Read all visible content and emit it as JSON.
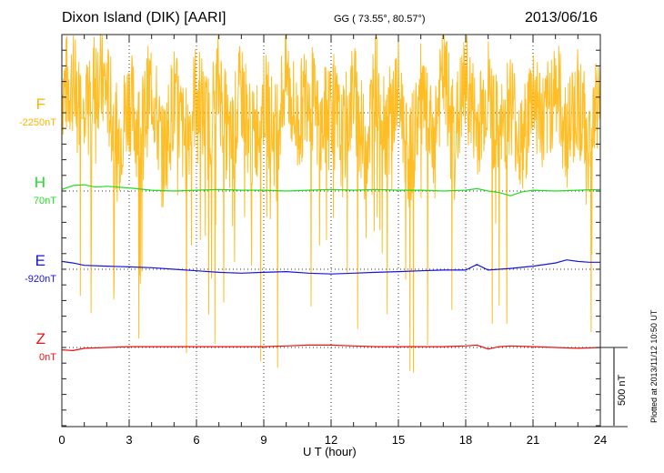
{
  "header": {
    "title": "Dixon Island (DIK)  [AARI]",
    "coords": "GG ( 73.55°,  80.57°)",
    "date": "2013/06/16"
  },
  "footer": {
    "plotted": "Plotted at 2013/11/12 10:50 UT"
  },
  "chart_data": {
    "type": "line",
    "title": "Dixon Island (DIK)  [AARI]",
    "xlabel": "U T (hour)",
    "xlim": [
      0,
      24
    ],
    "x_ticks": [
      "0",
      "3",
      "6",
      "9",
      "12",
      "15",
      "18",
      "21",
      "24"
    ],
    "grid": "dotted vertical lines every 3 hours, dotted horizontal baseline per component",
    "scale_bar": {
      "label": "500 nT",
      "value_nT": 500
    },
    "series": [
      {
        "name": "F",
        "baseline_label": "-2250nT",
        "baseline_nT": -2250,
        "color": "#FFB300",
        "description": "highly noisy / spiky trace",
        "x": [
          0,
          0.5,
          1,
          1.5,
          2,
          2.5,
          3,
          3.5,
          4,
          4.5,
          5,
          5.5,
          6,
          6.5,
          7,
          7.5,
          8,
          8.5,
          9,
          9.5,
          10,
          10.5,
          11,
          11.5,
          12,
          12.5,
          13,
          13.5,
          14,
          14.5,
          15,
          15.5,
          16,
          16.5,
          17,
          17.5,
          18,
          18.5,
          19,
          19.5,
          20,
          20.5,
          21,
          21.5,
          22,
          22.5,
          23,
          23.5,
          24
        ],
        "y_offset_nT": [
          150,
          200,
          -100,
          250,
          150,
          -200,
          100,
          -150,
          200,
          -300,
          100,
          -200,
          150,
          -100,
          200,
          -250,
          150,
          -200,
          100,
          -150,
          250,
          -100,
          200,
          -150,
          100,
          -200,
          150,
          -250,
          200,
          -100,
          150,
          -300,
          100,
          -200,
          250,
          -150,
          200,
          -100,
          150,
          -200,
          100,
          -250,
          150,
          -100,
          200,
          -150,
          100,
          -200,
          150
        ]
      },
      {
        "name": "H",
        "baseline_label": "70nT",
        "baseline_nT": 70,
        "color": "#22DD22",
        "x": [
          0,
          0.5,
          1,
          1.5,
          2,
          3,
          4,
          5,
          6,
          7,
          8,
          9,
          10,
          11,
          12,
          13,
          14,
          15,
          16,
          17,
          18,
          18.5,
          19,
          19.5,
          20,
          20.5,
          21,
          22,
          23,
          24
        ],
        "y_offset_nT": [
          10,
          35,
          40,
          25,
          30,
          20,
          5,
          0,
          5,
          10,
          5,
          5,
          0,
          5,
          10,
          5,
          10,
          5,
          5,
          0,
          5,
          15,
          0,
          -10,
          -30,
          -5,
          5,
          0,
          5,
          10
        ]
      },
      {
        "name": "E",
        "baseline_label": "-920nT",
        "baseline_nT": -920,
        "color": "#1515DD",
        "x": [
          0,
          0.5,
          1,
          2,
          3,
          4,
          5,
          6,
          7,
          8,
          9,
          10,
          11,
          12,
          13,
          14,
          15,
          16,
          17,
          18,
          18.5,
          19,
          20,
          21,
          22,
          22.5,
          23,
          23.5,
          24
        ],
        "y_offset_nT": [
          50,
          40,
          25,
          20,
          15,
          10,
          0,
          -10,
          -20,
          -25,
          -20,
          -15,
          -25,
          -30,
          -25,
          -20,
          -15,
          -10,
          -5,
          -5,
          30,
          -5,
          5,
          20,
          40,
          60,
          50,
          45,
          45
        ]
      },
      {
        "name": "Z",
        "baseline_label": "0nT",
        "baseline_nT": 0,
        "color": "#EE1111",
        "x": [
          0,
          0.5,
          1,
          2,
          3,
          4,
          5,
          6,
          7,
          8,
          9,
          10,
          11,
          12,
          13,
          14,
          15,
          16,
          17,
          18,
          18.5,
          19,
          19.5,
          20,
          21,
          22,
          23,
          24
        ],
        "y_offset_nT": [
          -15,
          -20,
          -5,
          0,
          5,
          5,
          5,
          5,
          5,
          5,
          5,
          10,
          15,
          15,
          10,
          5,
          5,
          5,
          5,
          10,
          15,
          -10,
          5,
          10,
          5,
          0,
          -5,
          0
        ]
      }
    ]
  }
}
